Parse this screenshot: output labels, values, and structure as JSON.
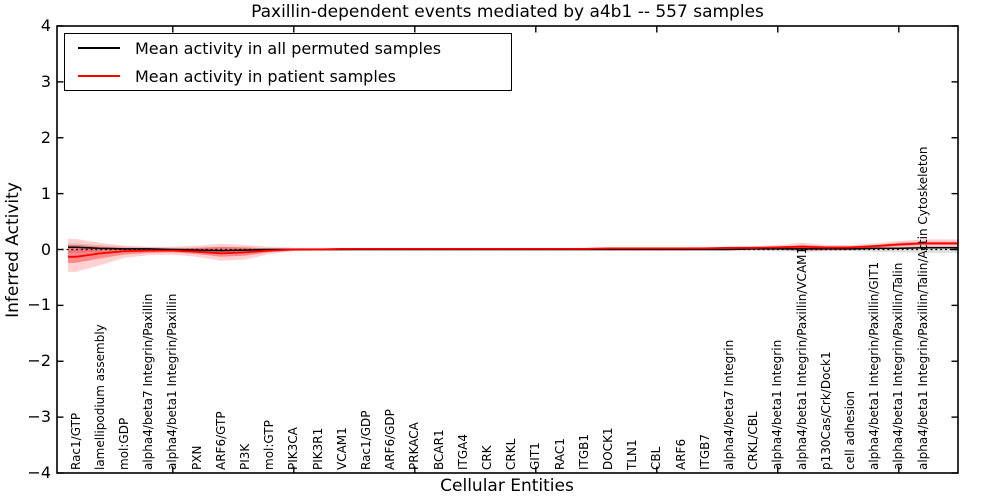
{
  "title": "Paxillin-dependent events mediated by a4b1 -- 557 samples",
  "legend": {
    "entries": [
      {
        "label": "Mean activity in all permuted samples",
        "color": "#000000"
      },
      {
        "label": "Mean activity in patient samples",
        "color": "#ff0000"
      }
    ],
    "position": "upper left"
  },
  "chart_data": {
    "type": "line",
    "title": "Paxillin-dependent events mediated by a4b1 -- 557 samples",
    "xlabel": "Cellular Entities",
    "ylabel": "Inferred Activity",
    "ylim": [
      -4,
      4
    ],
    "yticks": {
      "values": [
        4,
        3,
        2,
        1,
        0,
        -1,
        -2,
        -3,
        -4
      ],
      "labels": [
        "4",
        "3",
        "2",
        "1",
        "0",
        "−1",
        "−2",
        "−3",
        "−4"
      ]
    },
    "xtick_positions": [
      5,
      10,
      15,
      20,
      25,
      30,
      35
    ],
    "grid": false,
    "zero_line": {
      "show": true,
      "style": "dotted",
      "color": "#000000"
    },
    "categories": [
      "Rac1/GTP",
      "lamellipodium assembly",
      "mol:GDP",
      "alpha4/beta7 Integrin/Paxillin",
      "alpha4/beta1 Integrin/Paxillin",
      "PXN",
      "ARF6/GTP",
      "PI3K",
      "mol:GTP",
      "PIK3CA",
      "PIK3R1",
      "VCAM1",
      "Rac1/GDP",
      "ARF6/GDP",
      "PRKACA",
      "BCAR1",
      "ITGA4",
      "CRK",
      "CRKL",
      "GIT1",
      "RAC1",
      "ITGB1",
      "DOCK1",
      "TLN1",
      "CBL",
      "ARF6",
      "ITGB7",
      "alpha4/beta7 Integrin",
      "CRKL/CBL",
      "alpha4/beta1 Integrin",
      "alpha4/beta1 Integrin/Paxillin/VCAM1",
      "p130Cas/Crk/Dock1",
      "cell adhesion",
      "alpha4/beta1 Integrin/Paxillin/GIT1",
      "alpha4/beta1 Integrin/Paxillin/Talin",
      "alpha4/beta1 Integrin/Paxillin/Talin/Actin Cytoskeleton"
    ],
    "series": [
      {
        "name": "Mean activity in all permuted samples",
        "color": "#000000",
        "width": 1.5,
        "values": [
          0.04,
          0.02,
          0.01,
          0.01,
          0.0,
          -0.01,
          -0.02,
          -0.01,
          0.0,
          0.0,
          0.0,
          0.0,
          0.0,
          0.0,
          0.0,
          0.0,
          0.0,
          0.0,
          0.0,
          0.0,
          0.0,
          0.0,
          0.0,
          0.0,
          0.0,
          0.0,
          0.0,
          0.0,
          0.01,
          0.01,
          0.01,
          0.01,
          0.01,
          0.02,
          0.02,
          0.03
        ]
      },
      {
        "name": "Mean activity in patient samples",
        "color": "#ff0000",
        "width": 1.8,
        "values": [
          -0.13,
          -0.07,
          -0.03,
          -0.02,
          -0.02,
          -0.04,
          -0.07,
          -0.05,
          -0.02,
          0.0,
          0.0,
          0.01,
          0.01,
          0.01,
          0.01,
          0.01,
          0.01,
          0.01,
          0.01,
          0.01,
          0.01,
          0.01,
          0.02,
          0.02,
          0.02,
          0.02,
          0.02,
          0.03,
          0.03,
          0.04,
          0.05,
          0.035,
          0.035,
          0.06,
          0.09,
          0.11
        ]
      }
    ],
    "bands": [
      {
        "name": "permuted-sample-spread",
        "color": "#000000",
        "opacity": 0.12,
        "upper": [
          0.11,
          0.08,
          0.05,
          0.04,
          0.03,
          0.03,
          0.04,
          0.03,
          0.02,
          0.02,
          0.02,
          0.02,
          0.02,
          0.02,
          0.02,
          0.02,
          0.02,
          0.02,
          0.02,
          0.02,
          0.02,
          0.02,
          0.02,
          0.02,
          0.02,
          0.02,
          0.02,
          0.02,
          0.02,
          0.03,
          0.03,
          0.03,
          0.03,
          0.04,
          0.05,
          0.06
        ],
        "lower": [
          -0.06,
          -0.05,
          -0.04,
          -0.03,
          -0.03,
          -0.04,
          -0.06,
          -0.05,
          -0.03,
          -0.02,
          -0.02,
          -0.02,
          -0.02,
          -0.02,
          -0.02,
          -0.02,
          -0.02,
          -0.02,
          -0.02,
          -0.02,
          -0.02,
          -0.02,
          -0.02,
          -0.02,
          -0.02,
          -0.02,
          -0.02,
          -0.02,
          -0.02,
          -0.03,
          -0.04,
          -0.03,
          -0.03,
          -0.04,
          -0.05,
          -0.06
        ]
      },
      {
        "name": "patient-spread-outer",
        "color": "#ff0000",
        "opacity": 0.18,
        "upper": [
          0.19,
          0.12,
          0.07,
          0.05,
          0.05,
          0.07,
          0.1,
          0.08,
          0.05,
          0.03,
          0.03,
          0.03,
          0.03,
          0.03,
          0.03,
          0.03,
          0.03,
          0.03,
          0.03,
          0.03,
          0.03,
          0.03,
          0.04,
          0.04,
          0.04,
          0.04,
          0.05,
          0.05,
          0.06,
          0.08,
          0.12,
          0.08,
          0.08,
          0.11,
          0.15,
          0.18
        ],
        "lower": [
          -0.4,
          -0.28,
          -0.15,
          -0.1,
          -0.09,
          -0.13,
          -0.2,
          -0.18,
          -0.08,
          -0.03,
          -0.02,
          -0.02,
          -0.01,
          -0.01,
          -0.01,
          -0.01,
          -0.01,
          -0.01,
          -0.01,
          -0.01,
          -0.01,
          -0.01,
          -0.01,
          -0.01,
          -0.01,
          -0.01,
          -0.01,
          0.0,
          0.0,
          0.0,
          -0.04,
          -0.02,
          -0.01,
          0.0,
          0.02,
          0.03
        ]
      },
      {
        "name": "patient-spread-inner",
        "color": "#ff0000",
        "opacity": 0.35,
        "upper": [
          0.08,
          0.05,
          0.03,
          0.02,
          0.02,
          0.03,
          0.05,
          0.04,
          0.02,
          0.02,
          0.02,
          0.02,
          0.02,
          0.02,
          0.02,
          0.02,
          0.02,
          0.02,
          0.02,
          0.02,
          0.02,
          0.02,
          0.02,
          0.03,
          0.03,
          0.03,
          0.03,
          0.04,
          0.04,
          0.05,
          0.08,
          0.06,
          0.06,
          0.08,
          0.12,
          0.14
        ],
        "lower": [
          -0.24,
          -0.16,
          -0.09,
          -0.06,
          -0.05,
          -0.08,
          -0.13,
          -0.11,
          -0.05,
          -0.02,
          -0.01,
          -0.01,
          0.0,
          0.0,
          0.0,
          0.0,
          0.0,
          0.0,
          0.0,
          0.0,
          0.0,
          0.0,
          0.0,
          0.0,
          0.0,
          0.0,
          0.0,
          0.01,
          0.01,
          0.02,
          0.02,
          0.01,
          0.01,
          0.03,
          0.06,
          0.08
        ]
      }
    ]
  }
}
